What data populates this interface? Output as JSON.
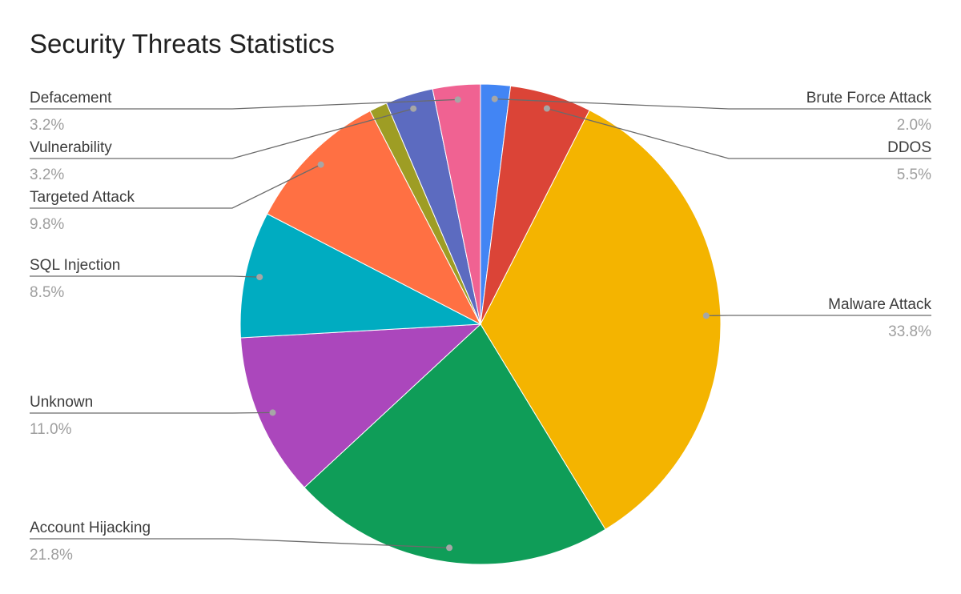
{
  "chart_data": {
    "type": "pie",
    "title": "Security Threats Statistics",
    "start_angle_deg": 0,
    "direction": "clockwise",
    "slices": [
      {
        "label": "Brute Force Attack",
        "value": 2.0,
        "pct_label": "2.0%",
        "color": "#4285f4"
      },
      {
        "label": "DDOS",
        "value": 5.5,
        "pct_label": "5.5%",
        "color": "#db4437"
      },
      {
        "label": "Malware Attack",
        "value": 33.8,
        "pct_label": "33.8%",
        "color": "#f4b400"
      },
      {
        "label": "Account Hijacking",
        "value": 21.8,
        "pct_label": "21.8%",
        "color": "#0f9d58"
      },
      {
        "label": "Unknown",
        "value": 11.0,
        "pct_label": "11.0%",
        "color": "#ab47bc"
      },
      {
        "label": "SQL Injection",
        "value": 8.5,
        "pct_label": "8.5%",
        "color": "#00acc1"
      },
      {
        "label": "Targeted Attack",
        "value": 9.8,
        "pct_label": "9.8%",
        "color": "#ff7043"
      },
      {
        "value": 1.2,
        "color": "#9e9d24"
      },
      {
        "label": "Vulnerability",
        "value": 3.2,
        "pct_label": "3.2%",
        "color": "#5c6bc0"
      },
      {
        "label": "Defacement",
        "value": 3.2,
        "pct_label": "3.2%",
        "color": "#f06292"
      }
    ]
  }
}
